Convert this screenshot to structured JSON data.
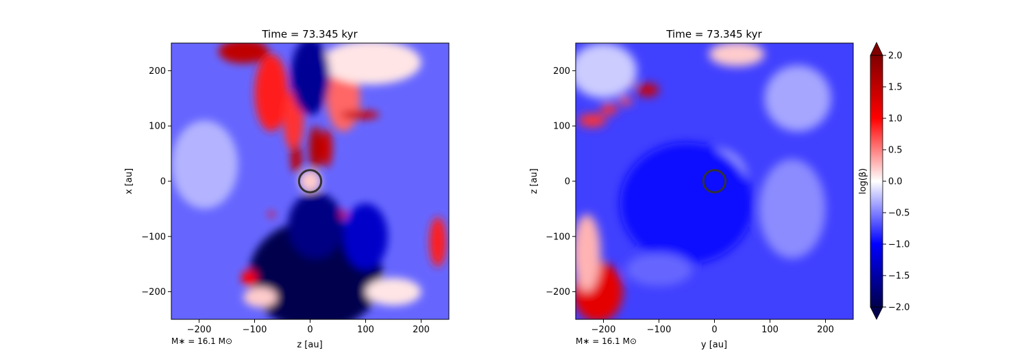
{
  "chart_data": [
    {
      "type": "heatmap",
      "title": "Time = 73.345 kyr",
      "xlabel": "z [au]",
      "ylabel": "x [au]",
      "xlim": [
        -250,
        250
      ],
      "ylim": [
        -250,
        250
      ],
      "xticks": [
        -200,
        -100,
        0,
        100,
        200
      ],
      "yticks": [
        -200,
        -100,
        0,
        100,
        200
      ],
      "xtick_labels": [
        "−200",
        "−100",
        "0",
        "100",
        "200"
      ],
      "ytick_labels": [
        "−200",
        "−100",
        "0",
        "100",
        "200"
      ],
      "annotation": "M∗ = 16.1 M⊙",
      "sink_circle": {
        "x": 0,
        "y": 0,
        "radius": 20
      },
      "background_log_beta": -0.6,
      "features": [
        {
          "x": -120,
          "y": 235,
          "rx": 45,
          "ry": 22,
          "value": 1.5
        },
        {
          "x": -70,
          "y": 160,
          "rx": 30,
          "ry": 70,
          "value": 0.9
        },
        {
          "x": -30,
          "y": 110,
          "rx": 18,
          "ry": 55,
          "value": 0.8
        },
        {
          "x": 60,
          "y": 150,
          "rx": 30,
          "ry": 60,
          "value": 0.6
        },
        {
          "x": 90,
          "y": 120,
          "rx": 35,
          "ry": 8,
          "value": 1.4
        },
        {
          "x": 10,
          "y": 60,
          "rx": 12,
          "ry": 40,
          "value": 1.6
        },
        {
          "x": 30,
          "y": 60,
          "rx": 10,
          "ry": 35,
          "value": 1.4
        },
        {
          "x": -25,
          "y": 40,
          "rx": 10,
          "ry": 25,
          "value": 1.5
        },
        {
          "x": 0,
          "y": 0,
          "rx": 20,
          "ry": 20,
          "value": 0.2
        },
        {
          "x": 110,
          "y": 215,
          "rx": 90,
          "ry": 40,
          "value": 0.1
        },
        {
          "x": 0,
          "y": 190,
          "rx": 35,
          "ry": 70,
          "value": -1.6
        },
        {
          "x": 10,
          "y": -170,
          "rx": 120,
          "ry": 100,
          "value": -2.0
        },
        {
          "x": 10,
          "y": -80,
          "rx": 50,
          "ry": 60,
          "value": -1.7
        },
        {
          "x": 100,
          "y": -100,
          "rx": 40,
          "ry": 60,
          "value": -1.3
        },
        {
          "x": 230,
          "y": -110,
          "rx": 15,
          "ry": 45,
          "value": 0.9
        },
        {
          "x": -110,
          "y": -175,
          "rx": 14,
          "ry": 14,
          "value": 1.0
        },
        {
          "x": -90,
          "y": -210,
          "rx": 30,
          "ry": 18,
          "value": 0.2
        },
        {
          "x": 150,
          "y": -200,
          "rx": 50,
          "ry": 25,
          "value": 0.1
        },
        {
          "x": -190,
          "y": 30,
          "rx": 60,
          "ry": 80,
          "value": -0.3
        },
        {
          "x": 60,
          "y": -60,
          "rx": 6,
          "ry": 6,
          "value": 1.2
        },
        {
          "x": -70,
          "y": -60,
          "rx": 6,
          "ry": 5,
          "value": 1.0
        }
      ]
    },
    {
      "type": "heatmap",
      "title": "Time = 73.345 kyr",
      "xlabel": "y [au]",
      "ylabel": "z [au]",
      "xlim": [
        -250,
        250
      ],
      "ylim": [
        -250,
        250
      ],
      "xticks": [
        -200,
        -100,
        0,
        100,
        200
      ],
      "yticks": [
        -200,
        -100,
        0,
        100,
        200
      ],
      "xtick_labels": [
        "−200",
        "−100",
        "0",
        "100",
        "200"
      ],
      "ytick_labels": [
        "−200",
        "−100",
        "0",
        "100",
        "200"
      ],
      "annotation": "M∗ = 16.1 M⊙",
      "sink_circle": {
        "x": 0,
        "y": 0,
        "radius": 20
      },
      "background_log_beta": -0.75,
      "features": [
        {
          "x": -210,
          "y": -200,
          "rx": 45,
          "ry": 55,
          "value": 1.2
        },
        {
          "x": -230,
          "y": -130,
          "rx": 25,
          "ry": 70,
          "value": 0.3
        },
        {
          "x": -220,
          "y": 110,
          "rx": 25,
          "ry": 12,
          "value": 0.8
        },
        {
          "x": -190,
          "y": 130,
          "rx": 15,
          "ry": 10,
          "value": 0.8
        },
        {
          "x": -160,
          "y": 145,
          "rx": 12,
          "ry": 8,
          "value": 0.7
        },
        {
          "x": -170,
          "y": 175,
          "rx": 30,
          "ry": 8,
          "value": 1.2
        },
        {
          "x": -120,
          "y": 165,
          "rx": 20,
          "ry": 12,
          "value": 1.4
        },
        {
          "x": -200,
          "y": 200,
          "rx": 60,
          "ry": 50,
          "value": -0.2
        },
        {
          "x": 40,
          "y": 230,
          "rx": 50,
          "ry": 22,
          "value": 0.2
        },
        {
          "x": 0,
          "y": 0,
          "rx": 20,
          "ry": 20,
          "value": 0.1
        },
        {
          "x": 0,
          "y": 0,
          "rx": 60,
          "ry": 60,
          "value": -0.3
        },
        {
          "x": -50,
          "y": -40,
          "rx": 120,
          "ry": 110,
          "value": -0.95
        },
        {
          "x": 150,
          "y": 150,
          "rx": 60,
          "ry": 60,
          "value": -0.35
        },
        {
          "x": 140,
          "y": -50,
          "rx": 60,
          "ry": 90,
          "value": -0.45
        },
        {
          "x": -100,
          "y": -160,
          "rx": 60,
          "ry": 30,
          "value": -0.6
        }
      ]
    }
  ],
  "colorbar": {
    "label": "log(β)",
    "colormap": "seismic",
    "vmin": -2.0,
    "vmax": 2.0,
    "extend": "both",
    "ticks": [
      "−2.0",
      "−1.5",
      "−1.0",
      "−0.5",
      "0.0",
      "0.5",
      "1.0",
      "1.5",
      "2.0"
    ],
    "tick_values": [
      -2.0,
      -1.5,
      -1.0,
      -0.5,
      0.0,
      0.5,
      1.0,
      1.5,
      2.0
    ]
  }
}
